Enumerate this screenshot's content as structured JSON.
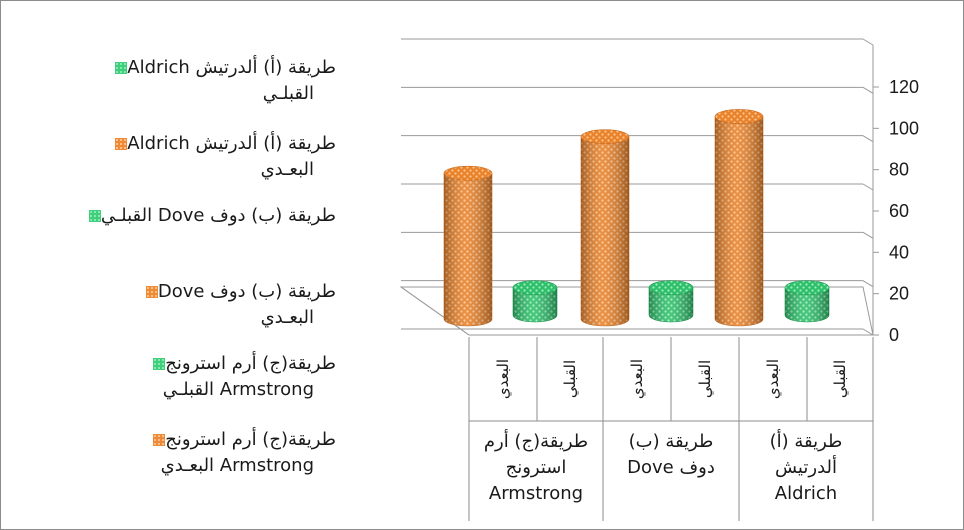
{
  "chart_data": {
    "type": "bar",
    "ylim": [
      0,
      120
    ],
    "yticks": [
      "0",
      "20",
      "40",
      "60",
      "80",
      "100",
      "120"
    ],
    "groups": [
      {
        "label": "طريقة (أ) ألدرتيش Aldrich",
        "sub": [
          "القبلي",
          "البعدي"
        ]
      },
      {
        "label": "طريقة (ب) دوف Dove",
        "sub": [
          "القبلي",
          "البعدي"
        ]
      },
      {
        "label": "طريقة(ج) أرم استرونج Armstrong",
        "sub": [
          "القبلي",
          "البعدي"
        ]
      }
    ],
    "series": [
      {
        "name": "طريقة (أ) ألدرتيش Aldrich القبلـي",
        "color": "#35c46f",
        "group": 0,
        "values": [
          15,
          0
        ]
      },
      {
        "name": "طريقة (أ) ألدرتيش Aldrich البعـدي",
        "color": "#e8822b",
        "group": 0,
        "values": [
          0,
          100
        ]
      },
      {
        "name": "طريقة (ب) دوف Dove القبلـي",
        "color": "#35c46f",
        "group": 1,
        "values": [
          15,
          0
        ]
      },
      {
        "name": "طريقة (ب) دوف Dove البعـدي",
        "color": "#e8822b",
        "group": 1,
        "values": [
          0,
          90
        ]
      },
      {
        "name": "طريقة(ج) أرم استرونج Armstrong القبلـي",
        "color": "#35c46f",
        "group": 2,
        "values": [
          15,
          0
        ]
      },
      {
        "name": "طريقة(ج) أرم استرونج Armstrong البعـدي",
        "color": "#e8822b",
        "group": 2,
        "values": [
          0,
          72
        ]
      }
    ],
    "legend_position": "left"
  },
  "legend": [
    {
      "line1": "طريقة (أ) ألدرتيش Aldrich",
      "line2": "القبلـي",
      "kind": "g"
    },
    {
      "line1": "طريقة (أ) ألدرتيش Aldrich",
      "line2": "البعـدي",
      "kind": "o"
    },
    {
      "line1": "طريقة (ب) دوف Dove  القبلـي",
      "line2": "",
      "kind": "g"
    },
    {
      "line1": "طريقة (ب) دوف Dove",
      "line2": "البعـدي",
      "kind": "o"
    },
    {
      "line1": "طريقة(ج) أرم استرونج",
      "line2": "Armstrong القبلـي",
      "kind": "g"
    },
    {
      "line1": "طريقة(ج) أرم استرونج",
      "line2": "Armstrong البعـدي",
      "kind": "o"
    }
  ],
  "group_labels": [
    {
      "line1": "طريقة(ج) أرم",
      "line2": "استرونج",
      "line3": "Armstrong"
    },
    {
      "line1": "طريقة (ب)",
      "line2": "دوف Dove",
      "line3": ""
    },
    {
      "line1": "طريقة (أ)",
      "line2": "ألدرتيش",
      "line3": "Aldrich"
    }
  ],
  "sub_labels": [
    "البعدي",
    "القبلي",
    "البعدي",
    "القبلي",
    "البعدي",
    "القبلي"
  ]
}
